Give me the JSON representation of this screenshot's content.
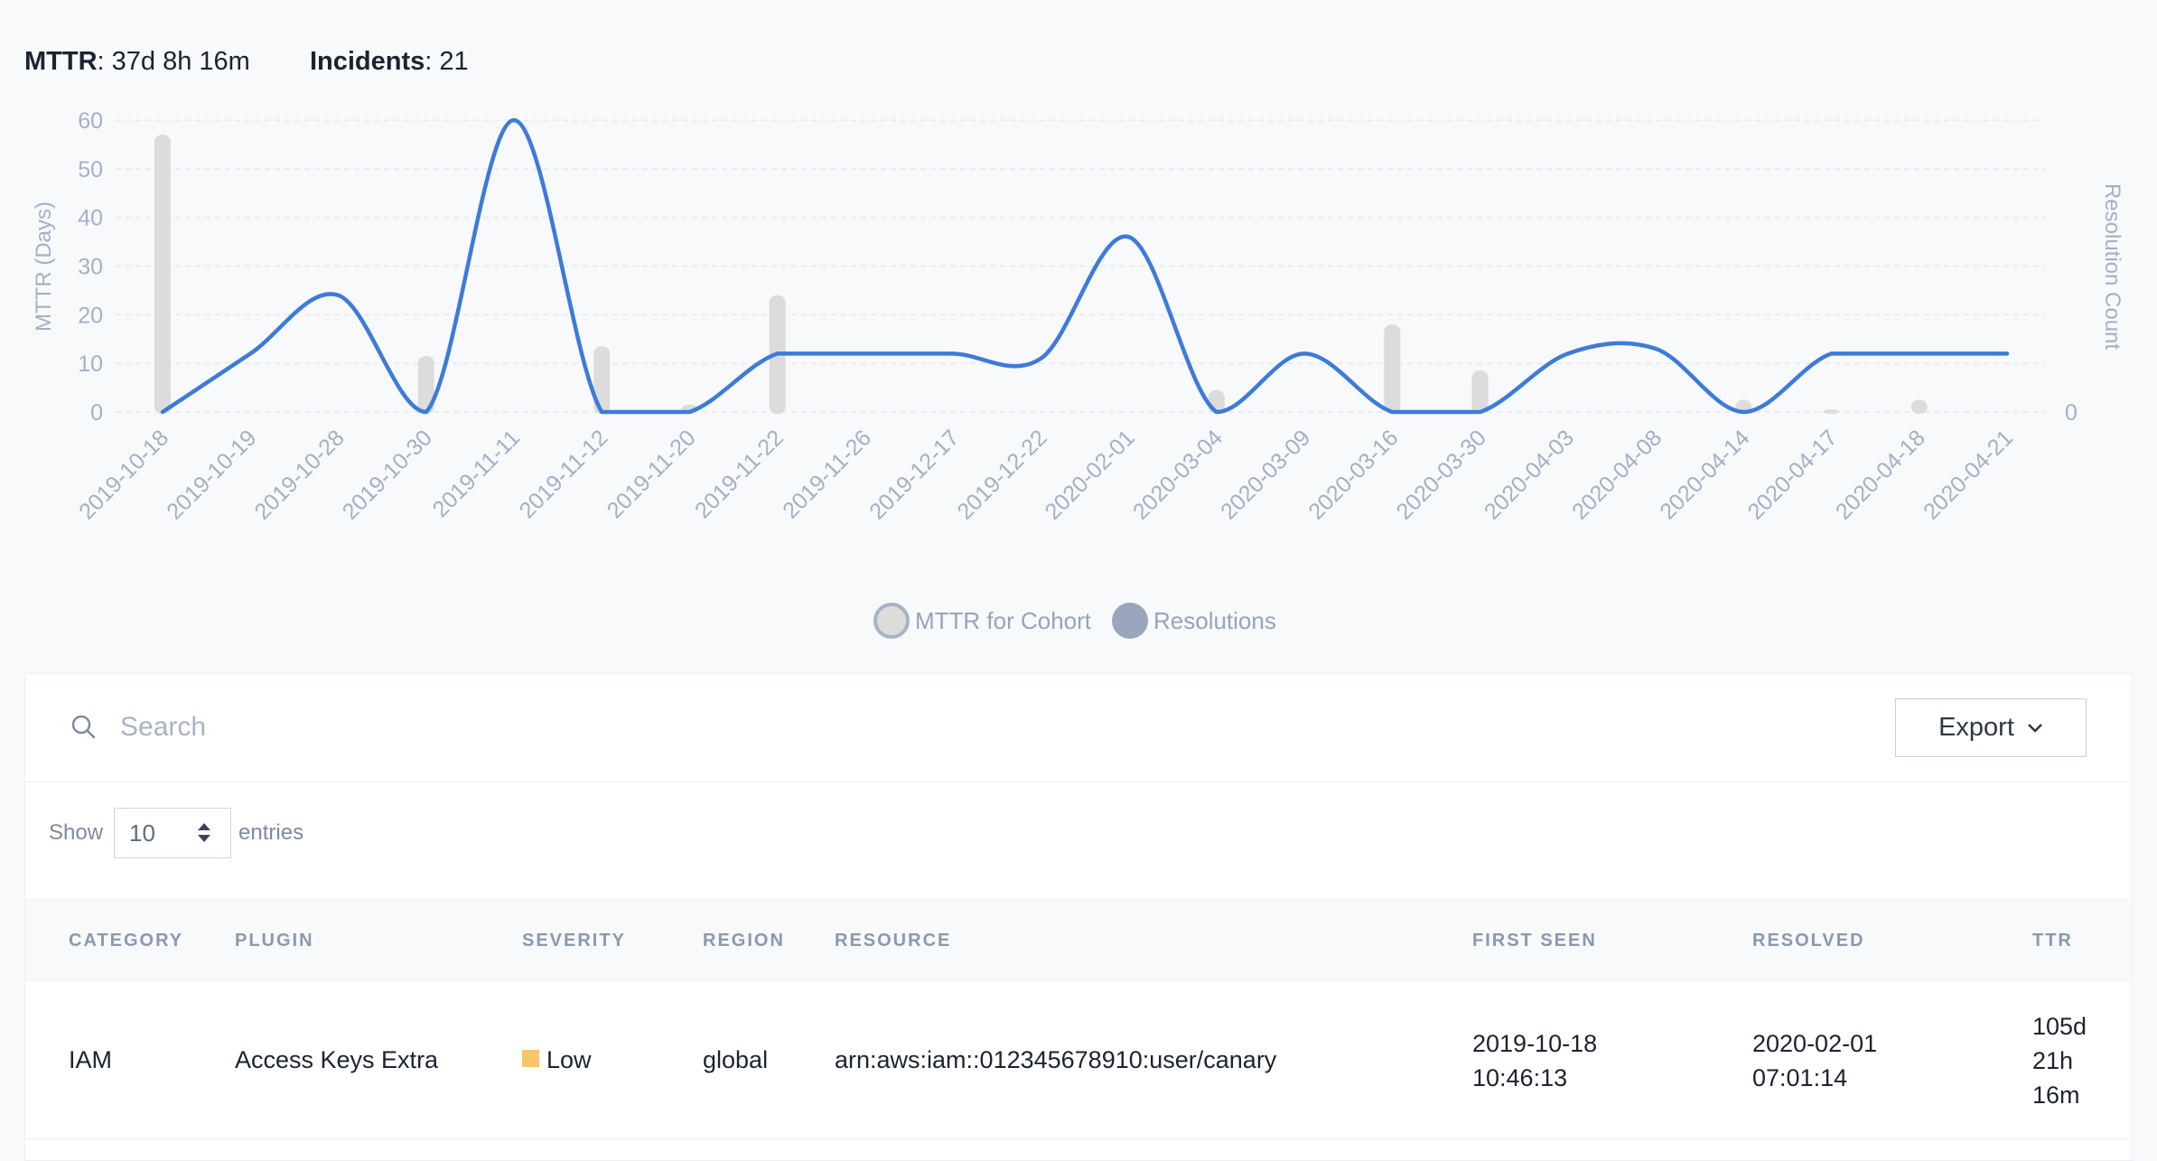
{
  "summary": {
    "mttr_label": "MTTR",
    "mttr_value": ": 37d 8h 16m",
    "incidents_label": "Incidents",
    "incidents_value": ": 21"
  },
  "chart_data": {
    "type": "line",
    "ylabel": "MTTR (Days)",
    "y2label": "Resolution Count",
    "y2_tick": "0",
    "ylim": [
      0,
      60
    ],
    "yticks": [
      "0",
      "10",
      "20",
      "30",
      "40",
      "50",
      "60"
    ],
    "grid": true,
    "categories": [
      "2019-10-18",
      "2019-10-19",
      "2019-10-28",
      "2019-10-30",
      "2019-11-11",
      "2019-11-12",
      "2019-11-20",
      "2019-11-22",
      "2019-11-26",
      "2019-12-17",
      "2019-12-22",
      "2020-02-01",
      "2020-03-04",
      "2020-03-09",
      "2020-03-16",
      "2020-03-30",
      "2020-04-03",
      "2020-04-08",
      "2020-04-14",
      "2020-04-17",
      "2020-04-18",
      "2020-04-21"
    ],
    "series": [
      {
        "name": "MTTR for Cohort",
        "type": "line",
        "color": "#3d7bd9",
        "values": [
          0,
          12,
          24,
          0,
          60,
          0,
          0,
          12,
          12,
          12,
          11,
          36,
          0,
          12,
          0,
          0,
          12,
          13,
          0,
          12,
          12,
          12
        ]
      },
      {
        "name": "Resolutions",
        "type": "bar",
        "color": "#dcdcdc",
        "values": [
          57,
          null,
          null,
          11.5,
          null,
          13.5,
          1.5,
          24,
          null,
          null,
          null,
          null,
          4.5,
          null,
          18,
          8.5,
          null,
          null,
          2.5,
          0.5,
          2.5,
          null
        ]
      }
    ],
    "legend": {
      "position": "bottom-center",
      "items": [
        {
          "label": "MTTR for Cohort",
          "color": "#dcdcdc",
          "border": "#a7b3c7"
        },
        {
          "label": "Resolutions",
          "color": "#9aa6be",
          "border": "#9aa6be"
        }
      ]
    }
  },
  "search": {
    "placeholder": "Search",
    "icon": "search-icon"
  },
  "export": {
    "label": "Export",
    "icon": "chevron-down-icon"
  },
  "entries": {
    "show_label": "Show",
    "value": "10",
    "entries_label": "entries"
  },
  "table": {
    "columns": [
      "CATEGORY",
      "PLUGIN",
      "SEVERITY",
      "REGION",
      "RESOURCE",
      "FIRST SEEN",
      "RESOLVED",
      "TTR"
    ],
    "rows": [
      {
        "category": "IAM",
        "plugin": "Access Keys Extra",
        "severity": "Low",
        "severity_color": "#f6c667",
        "region": "global",
        "resource": "arn:aws:iam::012345678910:user/canary",
        "first_seen_date": "2019-10-18",
        "first_seen_time": "10:46:13",
        "resolved_date": "2020-02-01",
        "resolved_time": "07:01:14",
        "ttr_days": "105d",
        "ttr_hours": "21h",
        "ttr_minutes": "16m"
      }
    ]
  }
}
